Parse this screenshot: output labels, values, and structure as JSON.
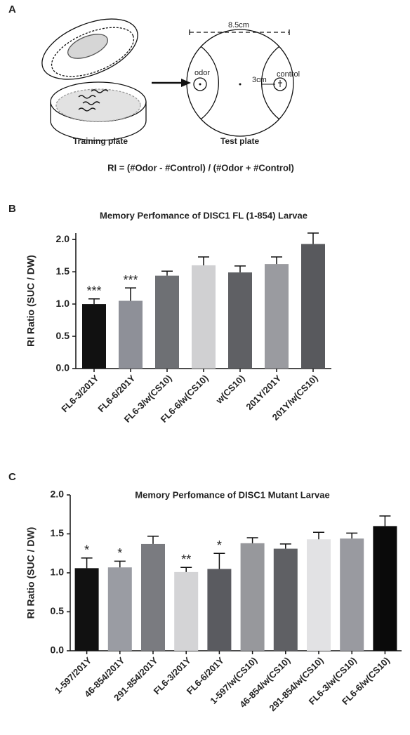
{
  "panel_labels": [
    "A",
    "B",
    "C"
  ],
  "diagram": {
    "width_label": "8.5cm",
    "odor": "odor",
    "control": "control",
    "distance": "3cm",
    "training": "Training plate",
    "test": "Test plate",
    "formula": "RI = (#Odor - #Control) / (#Odor + #Control)"
  },
  "chart_data": [
    {
      "type": "bar",
      "title": "Memory Perfomance of DISC1 FL (1-854) Larvae",
      "y_label": "RI Ratio (SUC / DW)",
      "categories": [
        "FL6-3/201Y",
        "FL6-6/201Y",
        "FL6-3/w(CS10)",
        "FL6-6/w(CS10)",
        "w(CS10)",
        "201Y/201Y",
        "201Y/w(CS10)"
      ],
      "values": [
        1.0,
        1.05,
        1.44,
        1.6,
        1.49,
        1.62,
        1.93
      ],
      "errors": [
        0.08,
        0.2,
        0.07,
        0.13,
        0.1,
        0.11,
        0.17
      ],
      "annotations": [
        "***",
        "***",
        null,
        null,
        null,
        null,
        null
      ],
      "colors": [
        "#111111",
        "#8e9098",
        "#6e7074",
        "#d0d0d2",
        "#5f6064",
        "#9a9ba0",
        "#58595d"
      ],
      "ylim": [
        0,
        2.1
      ],
      "yticks": [
        {
          "value": 0,
          "label": "0.0"
        },
        0.5,
        {
          "value": 1,
          "label": "1.0"
        },
        1.5,
        {
          "value": 2,
          "label": "2.0"
        }
      ]
    },
    {
      "type": "bar",
      "title": "Memory Perfomance of DISC1 Mutant Larvae",
      "y_label": "RI Ratio (SUC / DW)",
      "categories": [
        "1-597/201Y",
        "46-854/201Y",
        "291-854/201Y",
        "FL6-3/201Y",
        "FL6-6/201Y",
        "1-597/w(CS10)",
        "46-854/w(CS10)",
        "291-854/w(CS10)",
        "FL6-3/w(CS10)",
        "FL6-6/w(CS10)"
      ],
      "values": [
        1.06,
        1.07,
        1.37,
        1.01,
        1.05,
        1.38,
        1.31,
        1.43,
        1.44,
        1.6
      ],
      "errors": [
        0.13,
        0.08,
        0.1,
        0.06,
        0.2,
        0.07,
        0.06,
        0.09,
        0.07,
        0.13
      ],
      "annotations": [
        "*",
        "*",
        null,
        "**",
        "*",
        null,
        null,
        null,
        null,
        null
      ],
      "colors": [
        "#111111",
        "#9a9ca3",
        "#7a7b80",
        "#d4d4d6",
        "#5a5b60",
        "#97989c",
        "#5f6064",
        "#e2e2e4",
        "#999aa0",
        "#0a0a0a"
      ],
      "ylim": [
        0,
        2.0
      ],
      "yticks": [
        {
          "value": 0,
          "label": "0.0"
        },
        0.5,
        {
          "value": 1,
          "label": "1.0"
        },
        1.5,
        {
          "value": 2,
          "label": "2.0"
        }
      ]
    }
  ]
}
